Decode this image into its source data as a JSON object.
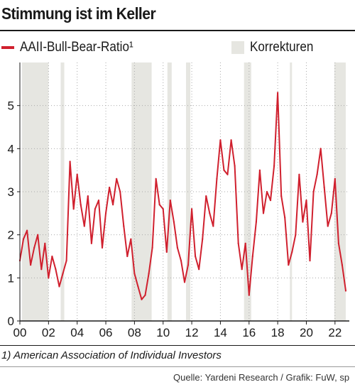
{
  "chart_data": {
    "type": "line",
    "title": "Stimmung ist im Keller",
    "series": [
      {
        "name": "AAII-Bull-Bear-Ratio¹",
        "x": [
          2000.0,
          2000.25,
          2000.5,
          2000.75,
          2001.0,
          2001.25,
          2001.5,
          2001.75,
          2002.0,
          2002.25,
          2002.5,
          2002.75,
          2003.0,
          2003.25,
          2003.5,
          2003.75,
          2004.0,
          2004.25,
          2004.5,
          2004.75,
          2005.0,
          2005.25,
          2005.5,
          2005.75,
          2006.0,
          2006.25,
          2006.5,
          2006.75,
          2007.0,
          2007.25,
          2007.5,
          2007.75,
          2008.0,
          2008.25,
          2008.5,
          2008.75,
          2009.0,
          2009.25,
          2009.5,
          2009.75,
          2010.0,
          2010.25,
          2010.5,
          2010.75,
          2011.0,
          2011.25,
          2011.5,
          2011.75,
          2012.0,
          2012.25,
          2012.5,
          2012.75,
          2013.0,
          2013.25,
          2013.5,
          2013.75,
          2014.0,
          2014.25,
          2014.5,
          2014.75,
          2015.0,
          2015.25,
          2015.5,
          2015.75,
          2016.0,
          2016.25,
          2016.5,
          2016.75,
          2017.0,
          2017.25,
          2017.5,
          2017.75,
          2018.0,
          2018.25,
          2018.5,
          2018.75,
          2019.0,
          2019.25,
          2019.5,
          2019.75,
          2020.0,
          2020.25,
          2020.5,
          2020.75,
          2021.0,
          2021.25,
          2021.5,
          2021.75,
          2022.0,
          2022.25,
          2022.5,
          2022.75
        ],
        "values": [
          1.4,
          1.9,
          2.1,
          1.3,
          1.7,
          2.0,
          1.2,
          1.8,
          1.0,
          1.5,
          1.2,
          0.8,
          1.1,
          1.4,
          3.7,
          2.6,
          3.4,
          2.7,
          2.2,
          2.9,
          1.8,
          2.6,
          2.8,
          1.7,
          2.5,
          3.1,
          2.7,
          3.3,
          3.0,
          2.2,
          1.5,
          1.9,
          1.1,
          0.8,
          0.5,
          0.6,
          1.1,
          1.7,
          3.3,
          2.7,
          2.6,
          1.6,
          2.8,
          2.3,
          1.7,
          1.4,
          0.9,
          1.3,
          2.6,
          1.5,
          1.2,
          1.9,
          2.9,
          2.5,
          2.2,
          3.3,
          4.2,
          3.5,
          3.4,
          4.2,
          3.6,
          1.8,
          1.2,
          1.8,
          0.6,
          1.5,
          2.3,
          3.5,
          2.5,
          3.0,
          2.8,
          3.6,
          5.3,
          2.9,
          2.4,
          1.3,
          1.6,
          2.0,
          3.4,
          2.3,
          2.8,
          1.4,
          3.0,
          3.4,
          4.0,
          3.1,
          2.2,
          2.5,
          3.3,
          1.8,
          1.3,
          0.7
        ]
      }
    ],
    "shaded_label": "Korrekturen",
    "shaded_periods": [
      [
        2000.15,
        2002.0
      ],
      [
        2002.85,
        2003.1
      ],
      [
        2007.8,
        2009.2
      ],
      [
        2010.3,
        2010.6
      ],
      [
        2011.6,
        2011.9
      ],
      [
        2015.65,
        2016.15
      ],
      [
        2018.85,
        2019.0
      ],
      [
        2021.95,
        2022.75
      ]
    ],
    "x_range": [
      2000,
      2023
    ],
    "ylim": [
      0,
      6
    ],
    "x_ticks": [
      2000,
      2002,
      2004,
      2006,
      2008,
      2010,
      2012,
      2014,
      2016,
      2018,
      2020,
      2022
    ],
    "x_tick_labels": [
      "00",
      "02",
      "04",
      "06",
      "08",
      "10",
      "12",
      "14",
      "16",
      "18",
      "20",
      "22"
    ],
    "y_ticks": [
      0,
      1,
      2,
      3,
      4,
      5
    ],
    "y_tick_labels": [
      "0",
      "1",
      "2",
      "3",
      "4",
      "5"
    ],
    "grid": "dotted-horizontal",
    "legend": "top",
    "footnote": "1) American Association of Individual Investors",
    "source": "Quelle: Yardeni Research / Grafik: FuW, sp",
    "colors": {
      "series": "#d0202e",
      "shade": "#e6e6e1",
      "text": "#1a1a1a",
      "grid": "#aaaaaa"
    }
  }
}
